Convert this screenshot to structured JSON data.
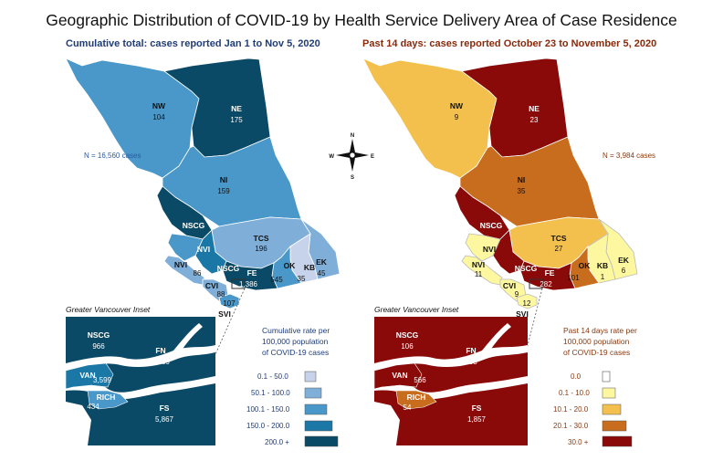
{
  "title": "Geographic Distribution of COVID-19 by Health Service Delivery Area of Case Residence",
  "colors": {
    "left_scale": [
      "#c6d3ea",
      "#7fafd9",
      "#4a98c9",
      "#1b77a6",
      "#0b4a66"
    ],
    "right_scale": [
      "#ffffff",
      "#fdf7a0",
      "#f3c04e",
      "#c86c1d",
      "#8a0a0a"
    ]
  },
  "left": {
    "subtitle": "Cumulative total: cases reported Jan 1 to Nov 5, 2020",
    "n_label": "N = 16,560 cases",
    "inset_title": "Greater Vancouver Inset",
    "legend_title": [
      "Cumulative rate per",
      "100,000 population",
      "of COVID-19 cases"
    ],
    "legend_items": [
      "0.1 - 50.0",
      "50.1 - 100.0",
      "100.1 - 150.0",
      "150.0 - 200.0",
      "200.0 +"
    ],
    "regions": {
      "nw": {
        "name": "NW",
        "value": "104"
      },
      "ne": {
        "name": "NE",
        "value": "175"
      },
      "ni": {
        "name": "NI",
        "value": "159"
      },
      "nscg": {
        "name": "NSCG"
      },
      "nvi": {
        "name": "NVI",
        "value": "86"
      },
      "nvi_top": {
        "name": "NVI"
      },
      "tcs": {
        "name": "TCS",
        "value": "196"
      },
      "ok": {
        "name": "OK",
        "value": "545"
      },
      "kb": {
        "name": "KB",
        "value": "35"
      },
      "ek": {
        "name": "EK",
        "value": "45"
      },
      "nscg_south": {
        "name": "NSCG"
      },
      "fe": {
        "name": "FE",
        "value": "1,386"
      },
      "cvi": {
        "name": "CVI",
        "value": "88"
      },
      "svi": {
        "name": "SVI",
        "value": "107"
      }
    },
    "inset": {
      "nscg": {
        "name": "NSCG",
        "value": "966"
      },
      "fn": {
        "name": "FN",
        "value": "2,409"
      },
      "van": {
        "name": "VAN",
        "value": "3,599"
      },
      "rich": {
        "name": "RICH",
        "value": "434"
      },
      "fs": {
        "name": "FS",
        "value": "5,867"
      }
    }
  },
  "right": {
    "subtitle": "Past 14 days: cases reported October 23 to November 5, 2020",
    "n_label": "N = 3,984 cases",
    "inset_title": "Greater Vancouver Inset",
    "legend_title": [
      "Past 14 days rate per",
      "100,000 population",
      "of COVID-19 cases"
    ],
    "legend_items": [
      "0.0",
      "0.1 - 10.0",
      "10.1 - 20.0",
      "20.1 - 30.0",
      "30.0 +"
    ],
    "regions": {
      "nw": {
        "name": "NW",
        "value": "9"
      },
      "ne": {
        "name": "NE",
        "value": "23"
      },
      "ni": {
        "name": "NI",
        "value": "35"
      },
      "nscg": {
        "name": "NSCG"
      },
      "nvi": {
        "name": "NVI",
        "value": "11"
      },
      "nvi_top": {
        "name": "NVI"
      },
      "tcs": {
        "name": "TCS",
        "value": "27"
      },
      "ok": {
        "name": "OK",
        "value": "101"
      },
      "kb": {
        "name": "KB",
        "value": "1"
      },
      "ek": {
        "name": "EK",
        "value": "6"
      },
      "nscg_south": {
        "name": "NSCG"
      },
      "fe": {
        "name": "FE",
        "value": "282"
      },
      "cvi": {
        "name": "CVI",
        "value": "9"
      },
      "svi": {
        "name": "SVI",
        "value": "12"
      }
    },
    "inset": {
      "nscg": {
        "name": "NSCG",
        "value": "106"
      },
      "fn": {
        "name": "FN",
        "value": "683"
      },
      "van": {
        "name": "VAN",
        "value": "566"
      },
      "rich": {
        "name": "RICH",
        "value": "54"
      },
      "fs": {
        "name": "FS",
        "value": "1,857"
      }
    }
  },
  "compass": {
    "n": "N",
    "s": "S",
    "e": "E",
    "w": "W"
  }
}
